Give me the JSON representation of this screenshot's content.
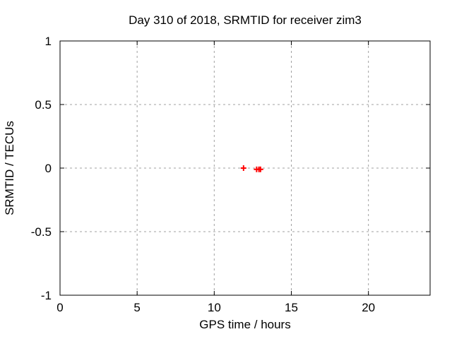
{
  "window": {
    "background": "#ffffff"
  },
  "chart_data": {
    "type": "scatter",
    "title": "Day 310 of 2018, SRMTID for receiver zim3",
    "xlabel": "GPS time / hours",
    "ylabel": "SRMTID / TECUs",
    "xlim": [
      0,
      24
    ],
    "ylim": [
      -1,
      1
    ],
    "xticks": [
      0,
      5,
      10,
      15,
      20
    ],
    "yticks": [
      -1,
      -0.5,
      0,
      0.5,
      1
    ],
    "grid": true,
    "legend": "none",
    "series": [
      {
        "name": "SRMTID",
        "marker": "plus",
        "color": "#ff0000",
        "points": [
          [
            11.9,
            0.0
          ],
          [
            12.75,
            -0.01
          ],
          [
            12.9,
            -0.01
          ],
          [
            13.0,
            -0.01
          ]
        ]
      }
    ],
    "colors": {
      "grid": "#a0a0a0",
      "axis": "#000000",
      "text": "#000000",
      "background": "#ffffff"
    }
  }
}
